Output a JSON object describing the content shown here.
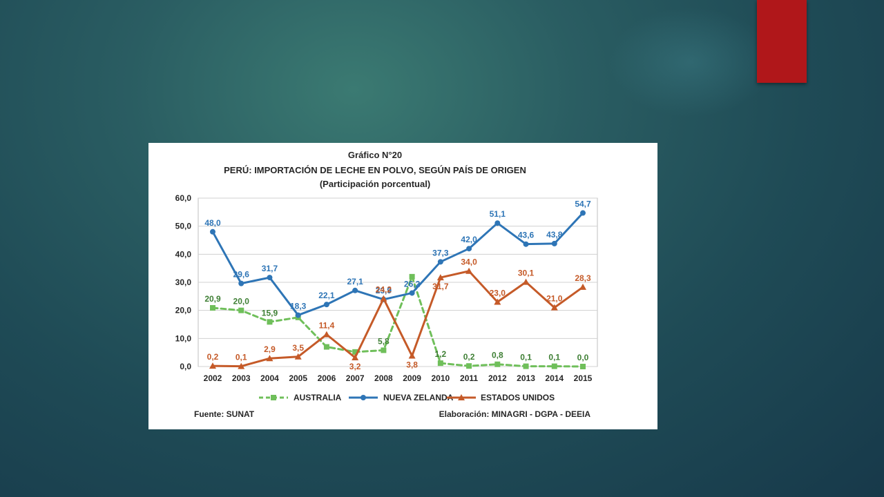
{
  "slide": {
    "accent_color": "#b0171a"
  },
  "chart_data": {
    "type": "line",
    "figure_label": "Gráfico N°20",
    "title": "PERÚ: IMPORTACIÓN DE LECHE EN POLVO, SEGÚN PAÍS DE ORIGEN",
    "subtitle": "(Participación porcentual)",
    "x": [
      "2002",
      "2003",
      "2004",
      "2005",
      "2006",
      "2007",
      "2008",
      "2009",
      "2010",
      "2011",
      "2012",
      "2013",
      "2014",
      "2015"
    ],
    "ylim": [
      0,
      60
    ],
    "y_ticks": [
      "0,0",
      "10,0",
      "20,0",
      "30,0",
      "40,0",
      "50,0",
      "60,0"
    ],
    "grid": "horizontal",
    "legend_position": "bottom",
    "series": [
      {
        "name": "AUSTRALIA",
        "color": "#6fbf5a",
        "label_color": "#3e7f34",
        "marker": "square",
        "dashed": true,
        "values": [
          20.9,
          20.0,
          15.9,
          17.5,
          7.0,
          5.2,
          5.8,
          32.0,
          1.2,
          0.2,
          0.8,
          0.1,
          0.1,
          0.0
        ],
        "labels": [
          "20,9",
          "20,0",
          "15,9",
          "",
          "",
          "",
          "5,8",
          "",
          "1,2",
          "0,2",
          "0,8",
          "0,1",
          "0,1",
          "0,0"
        ]
      },
      {
        "name": "NUEVA ZELANDA",
        "color": "#2e75b6",
        "label_color": "#2e75b6",
        "marker": "circle",
        "dashed": false,
        "values": [
          48.0,
          29.6,
          31.7,
          18.3,
          22.1,
          27.1,
          23.9,
          26.2,
          37.3,
          42.0,
          51.1,
          43.6,
          43.8,
          54.7
        ],
        "labels": [
          "48,0",
          "29,6",
          "31,7",
          "18,3",
          "22,1",
          "27,1",
          "23,9",
          "26,2",
          "37,3",
          "42,0",
          "51,1",
          "43,6",
          "43,8",
          "54,7"
        ]
      },
      {
        "name": "ESTADOS UNIDOS",
        "color": "#c55a28",
        "label_color": "#c55a28",
        "marker": "triangle",
        "dashed": false,
        "values": [
          0.2,
          0.1,
          2.9,
          3.5,
          11.4,
          3.2,
          24.2,
          3.8,
          31.7,
          34.0,
          23.0,
          30.1,
          21.0,
          28.3
        ],
        "labels": [
          "0,2",
          "0,1",
          "2,9",
          "3,5",
          "11,4",
          "3,2",
          "24,2",
          "3,8",
          "31,7",
          "34,0",
          "23,0",
          "30,1",
          "21,0",
          "28,3"
        ]
      }
    ],
    "source": "Fuente: SUNAT",
    "credit": "Elaboración: MINAGRI - DGPA - DEEIA"
  }
}
